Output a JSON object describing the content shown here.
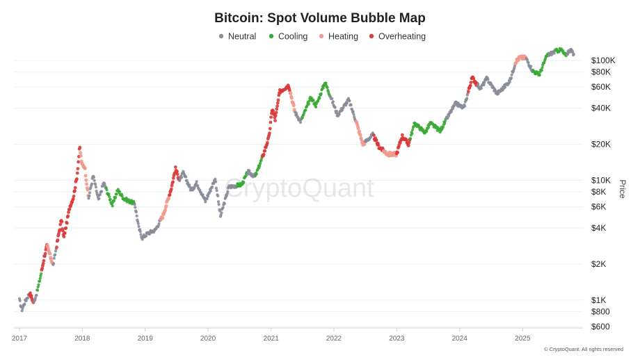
{
  "watermark": "CryptoQuant",
  "credit": "© CryptoQuant. All rights reserved",
  "chart_data": {
    "type": "scatter",
    "title": "Bitcoin: Spot Volume Bubble Map",
    "ylabel": "Price",
    "y_scale": "log",
    "ylim": [
      600,
      130000
    ],
    "xlim": [
      "2017-01-01",
      "2025-11-15"
    ],
    "y_ticks": [
      {
        "value": 100000,
        "label": "$100K"
      },
      {
        "value": 80000,
        "label": "$80K"
      },
      {
        "value": 60000,
        "label": "$60K"
      },
      {
        "value": 40000,
        "label": "$40K"
      },
      {
        "value": 20000,
        "label": "$20K"
      },
      {
        "value": 10000,
        "label": "$10K"
      },
      {
        "value": 8000,
        "label": "$8K"
      },
      {
        "value": 6000,
        "label": "$6K"
      },
      {
        "value": 4000,
        "label": "$4K"
      },
      {
        "value": 2000,
        "label": "$2K"
      },
      {
        "value": 1000,
        "label": "$1K"
      },
      {
        "value": 800,
        "label": "$800"
      },
      {
        "value": 600,
        "label": "$600"
      }
    ],
    "x_ticks": [
      {
        "value": "2017-01-01",
        "label": "2017"
      },
      {
        "value": "2018-01-01",
        "label": "2018"
      },
      {
        "value": "2019-01-01",
        "label": "2019"
      },
      {
        "value": "2020-01-01",
        "label": "2020"
      },
      {
        "value": "2021-01-01",
        "label": "2021"
      },
      {
        "value": "2022-01-01",
        "label": "2022"
      },
      {
        "value": "2023-01-01",
        "label": "2023"
      },
      {
        "value": "2024-01-01",
        "label": "2024"
      },
      {
        "value": "2025-01-01",
        "label": "2025"
      }
    ],
    "legend_position": "top-center",
    "grid": true,
    "series": [
      {
        "name": "Neutral",
        "color": "#8a8c99"
      },
      {
        "name": "Cooling",
        "color": "#3aaa35"
      },
      {
        "name": "Heating",
        "color": "#ef9a8c"
      },
      {
        "name": "Overheating",
        "color": "#d93a3a"
      }
    ],
    "price_path": [
      [
        "2017-01-01",
        1000
      ],
      [
        "2017-01-15",
        830
      ],
      [
        "2017-02-01",
        960
      ],
      [
        "2017-03-01",
        1150
      ],
      [
        "2017-03-25",
        950
      ],
      [
        "2017-04-15",
        1200
      ],
      [
        "2017-05-10",
        1750
      ],
      [
        "2017-05-25",
        2300
      ],
      [
        "2017-06-10",
        2850
      ],
      [
        "2017-07-15",
        1950
      ],
      [
        "2017-08-05",
        2850
      ],
      [
        "2017-09-01",
        4700
      ],
      [
        "2017-09-15",
        3300
      ],
      [
        "2017-10-01",
        4300
      ],
      [
        "2017-10-20",
        6000
      ],
      [
        "2017-11-10",
        7200
      ],
      [
        "2017-12-01",
        10800
      ],
      [
        "2017-12-17",
        19000
      ],
      [
        "2017-12-30",
        13500
      ],
      [
        "2018-01-15",
        13000
      ],
      [
        "2018-02-06",
        7000
      ],
      [
        "2018-03-05",
        11000
      ],
      [
        "2018-04-05",
        6800
      ],
      [
        "2018-05-05",
        9600
      ],
      [
        "2018-06-25",
        6200
      ],
      [
        "2018-07-25",
        8300
      ],
      [
        "2018-09-01",
        7000
      ],
      [
        "2018-11-01",
        6400
      ],
      [
        "2018-11-25",
        4000
      ],
      [
        "2018-12-15",
        3300
      ],
      [
        "2019-01-15",
        3600
      ],
      [
        "2019-03-01",
        3850
      ],
      [
        "2019-04-15",
        5100
      ],
      [
        "2019-06-01",
        8500
      ],
      [
        "2019-06-26",
        12500
      ],
      [
        "2019-07-20",
        10000
      ],
      [
        "2019-08-10",
        11500
      ],
      [
        "2019-09-26",
        8200
      ],
      [
        "2019-10-27",
        9500
      ],
      [
        "2019-12-17",
        6700
      ],
      [
        "2020-02-12",
        10300
      ],
      [
        "2020-03-13",
        5000
      ],
      [
        "2020-05-01",
        8800
      ],
      [
        "2020-07-15",
        9200
      ],
      [
        "2020-08-20",
        11800
      ],
      [
        "2020-10-01",
        10700
      ],
      [
        "2020-11-15",
        16000
      ],
      [
        "2020-12-20",
        23000
      ],
      [
        "2021-01-08",
        40000
      ],
      [
        "2021-01-25",
        32000
      ],
      [
        "2021-02-20",
        55000
      ],
      [
        "2021-04-14",
        62000
      ],
      [
        "2021-05-20",
        37000
      ],
      [
        "2021-06-22",
        31000
      ],
      [
        "2021-08-20",
        49000
      ],
      [
        "2021-09-20",
        42000
      ],
      [
        "2021-11-10",
        66000
      ],
      [
        "2021-12-20",
        47000
      ],
      [
        "2022-01-22",
        35000
      ],
      [
        "2022-03-28",
        47000
      ],
      [
        "2022-05-10",
        31000
      ],
      [
        "2022-06-18",
        20000
      ],
      [
        "2022-08-15",
        24000
      ],
      [
        "2022-09-20",
        19000
      ],
      [
        "2022-11-10",
        16500
      ],
      [
        "2022-12-31",
        16500
      ],
      [
        "2023-02-01",
        23500
      ],
      [
        "2023-03-10",
        20000
      ],
      [
        "2023-04-15",
        30000
      ],
      [
        "2023-06-15",
        25000
      ],
      [
        "2023-07-15",
        30000
      ],
      [
        "2023-09-10",
        25800
      ],
      [
        "2023-10-25",
        34000
      ],
      [
        "2023-12-10",
        44000
      ],
      [
        "2024-01-25",
        40000
      ],
      [
        "2024-03-14",
        72000
      ],
      [
        "2024-05-01",
        58000
      ],
      [
        "2024-06-07",
        71000
      ],
      [
        "2024-08-05",
        53000
      ],
      [
        "2024-09-01",
        57000
      ],
      [
        "2024-10-20",
        68000
      ],
      [
        "2024-11-22",
        98000
      ],
      [
        "2024-12-17",
        106000
      ],
      [
        "2025-01-20",
        105000
      ],
      [
        "2025-02-28",
        82000
      ],
      [
        "2025-04-08",
        76000
      ],
      [
        "2025-05-22",
        110000
      ],
      [
        "2025-07-14",
        120000
      ],
      [
        "2025-08-14",
        123000
      ],
      [
        "2025-09-05",
        110000
      ],
      [
        "2025-10-06",
        124000
      ],
      [
        "2025-10-25",
        111000
      ]
    ],
    "regimes": [
      {
        "from": "2017-01-01",
        "to": "2017-03-01",
        "state": "Neutral"
      },
      {
        "from": "2017-03-01",
        "to": "2017-03-25",
        "state": "Overheating"
      },
      {
        "from": "2017-03-25",
        "to": "2017-04-15",
        "state": "Neutral"
      },
      {
        "from": "2017-04-15",
        "to": "2017-05-10",
        "state": "Cooling"
      },
      {
        "from": "2017-05-10",
        "to": "2017-06-10",
        "state": "Overheating"
      },
      {
        "from": "2017-06-10",
        "to": "2017-07-15",
        "state": "Heating"
      },
      {
        "from": "2017-07-15",
        "to": "2017-08-05",
        "state": "Neutral"
      },
      {
        "from": "2017-08-05",
        "to": "2017-12-20",
        "state": "Overheating"
      },
      {
        "from": "2017-12-20",
        "to": "2018-02-06",
        "state": "Heating"
      },
      {
        "from": "2018-02-06",
        "to": "2018-05-20",
        "state": "Neutral"
      },
      {
        "from": "2018-05-20",
        "to": "2018-11-01",
        "state": "Cooling"
      },
      {
        "from": "2018-11-01",
        "to": "2019-04-01",
        "state": "Neutral"
      },
      {
        "from": "2019-04-01",
        "to": "2019-05-20",
        "state": "Heating"
      },
      {
        "from": "2019-05-20",
        "to": "2019-07-20",
        "state": "Overheating"
      },
      {
        "from": "2019-07-20",
        "to": "2020-06-15",
        "state": "Neutral"
      },
      {
        "from": "2020-06-15",
        "to": "2020-08-15",
        "state": "Cooling"
      },
      {
        "from": "2020-08-15",
        "to": "2020-10-01",
        "state": "Neutral"
      },
      {
        "from": "2020-10-01",
        "to": "2020-11-10",
        "state": "Cooling"
      },
      {
        "from": "2020-11-10",
        "to": "2021-04-20",
        "state": "Overheating"
      },
      {
        "from": "2021-04-20",
        "to": "2021-05-20",
        "state": "Heating"
      },
      {
        "from": "2021-05-20",
        "to": "2021-07-01",
        "state": "Neutral"
      },
      {
        "from": "2021-07-01",
        "to": "2021-12-10",
        "state": "Cooling"
      },
      {
        "from": "2021-12-10",
        "to": "2022-05-10",
        "state": "Neutral"
      },
      {
        "from": "2022-05-10",
        "to": "2022-07-01",
        "state": "Heating"
      },
      {
        "from": "2022-07-01",
        "to": "2022-08-20",
        "state": "Neutral"
      },
      {
        "from": "2022-08-20",
        "to": "2022-10-15",
        "state": "Overheating"
      },
      {
        "from": "2022-10-15",
        "to": "2022-12-31",
        "state": "Heating"
      },
      {
        "from": "2022-12-31",
        "to": "2023-03-20",
        "state": "Overheating"
      },
      {
        "from": "2023-03-20",
        "to": "2023-10-15",
        "state": "Cooling"
      },
      {
        "from": "2023-10-15",
        "to": "2024-02-20",
        "state": "Neutral"
      },
      {
        "from": "2024-02-20",
        "to": "2024-04-15",
        "state": "Overheating"
      },
      {
        "from": "2024-04-15",
        "to": "2024-11-20",
        "state": "Neutral"
      },
      {
        "from": "2024-11-20",
        "to": "2025-01-20",
        "state": "Heating"
      },
      {
        "from": "2025-01-20",
        "to": "2025-03-01",
        "state": "Neutral"
      },
      {
        "from": "2025-03-01",
        "to": "2025-06-01",
        "state": "Cooling"
      },
      {
        "from": "2025-06-01",
        "to": "2025-07-10",
        "state": "Neutral"
      },
      {
        "from": "2025-07-10",
        "to": "2025-09-15",
        "state": "Cooling"
      },
      {
        "from": "2025-09-15",
        "to": "2025-11-15",
        "state": "Neutral"
      }
    ]
  }
}
